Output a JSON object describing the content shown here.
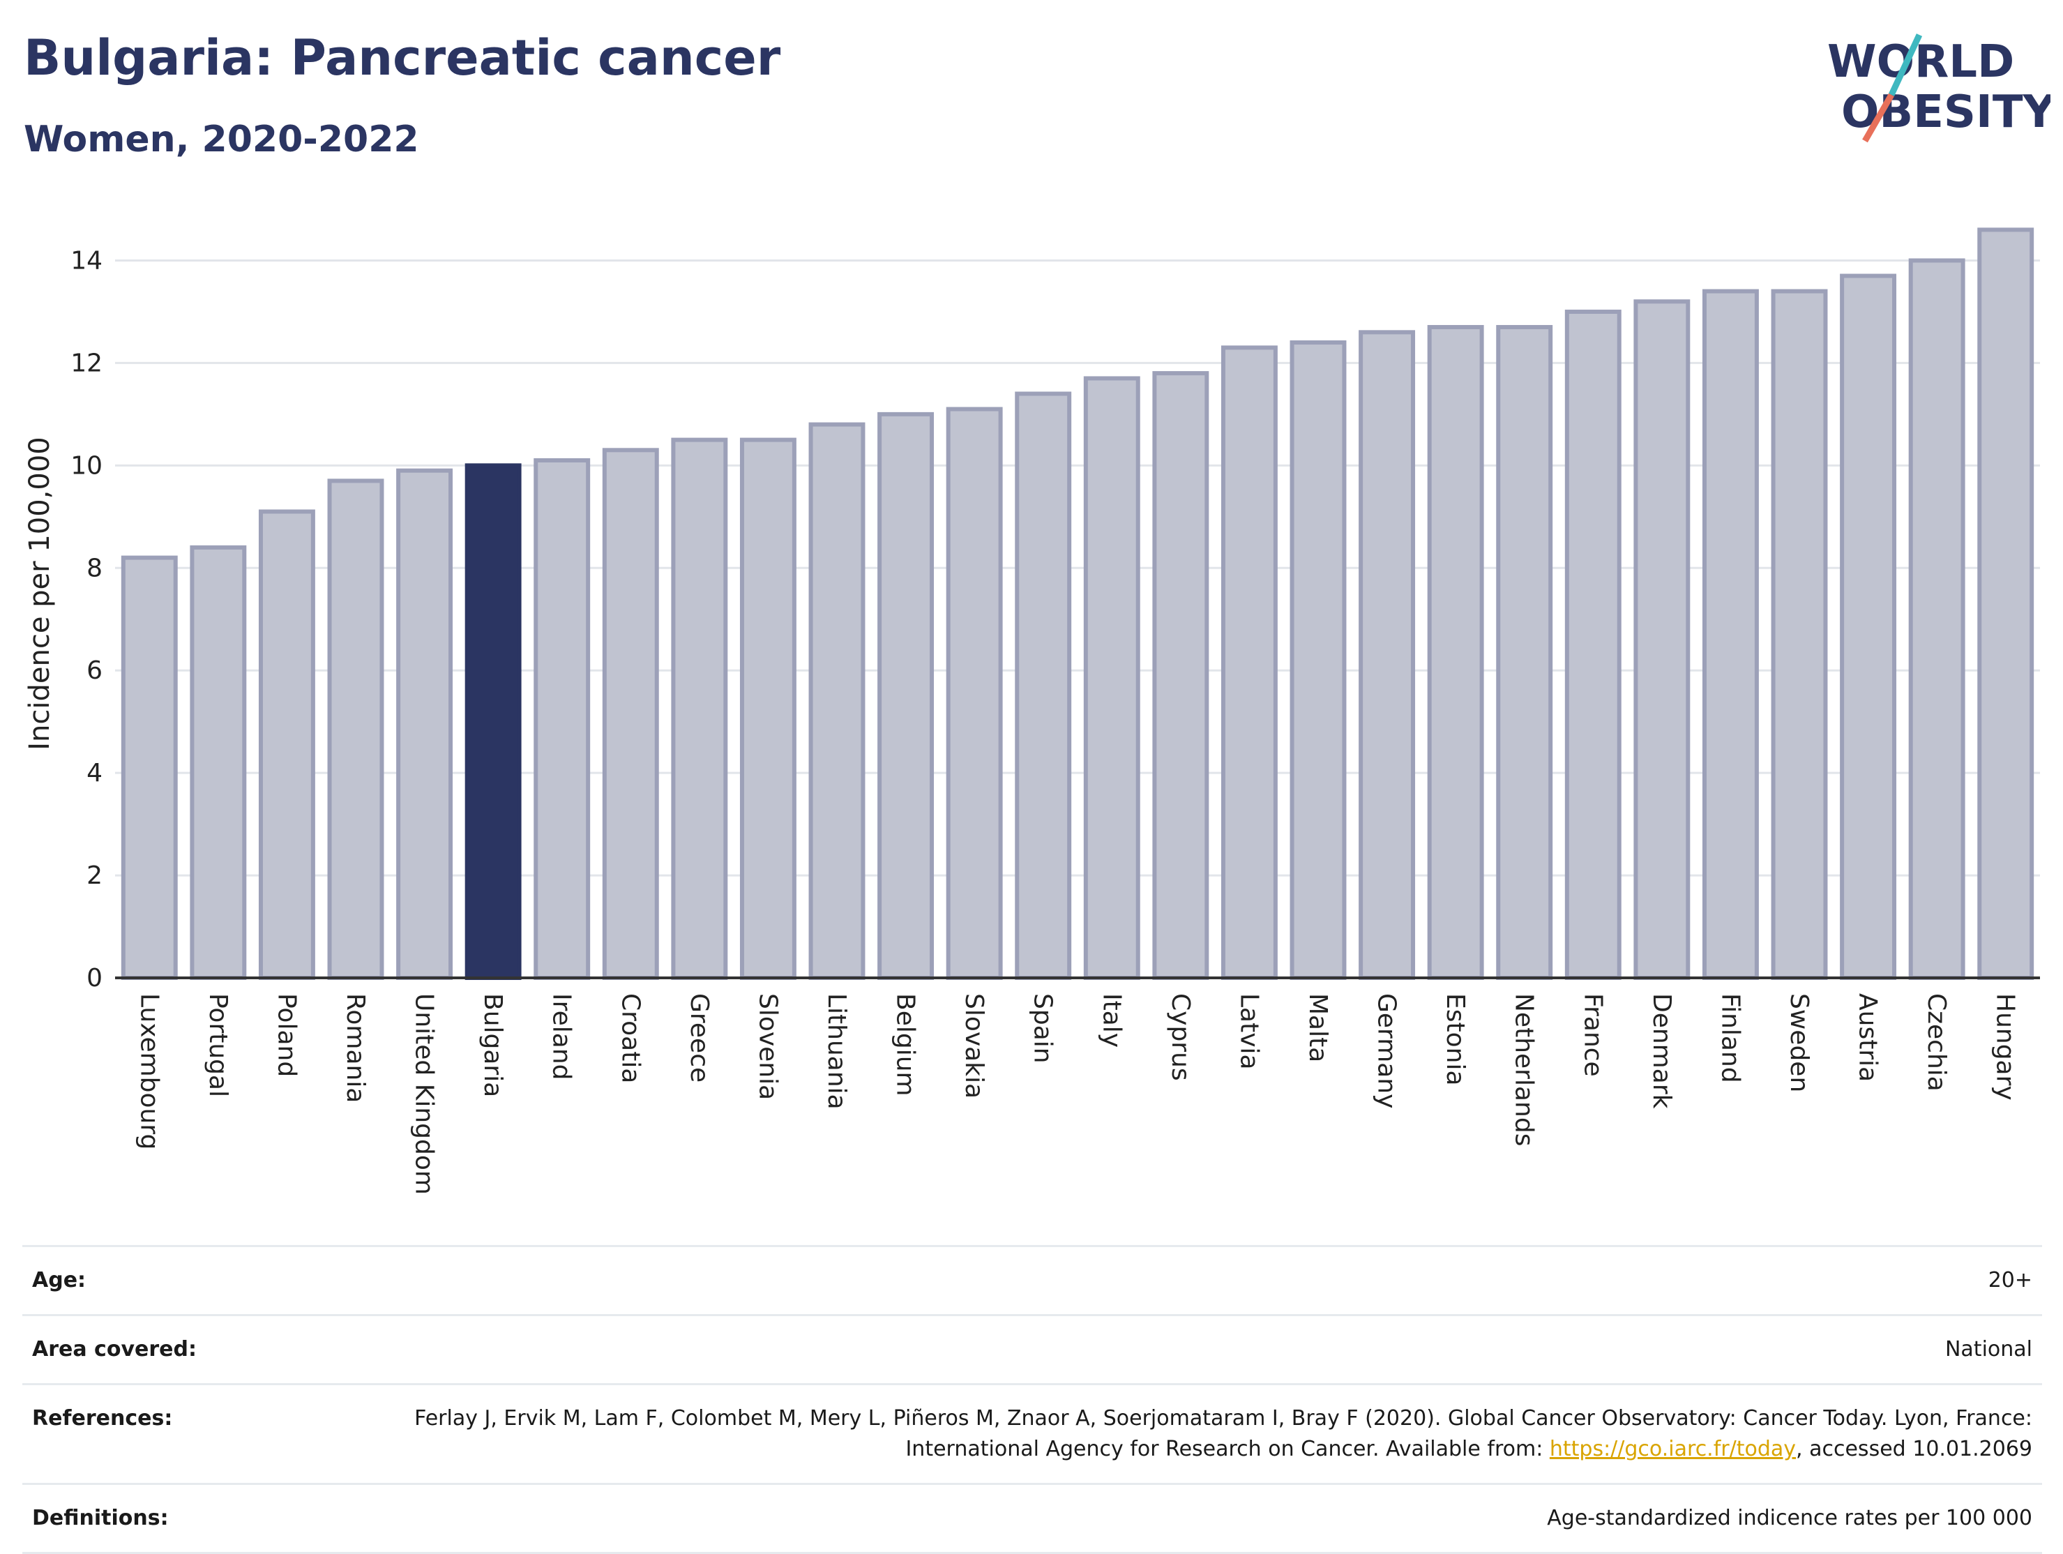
{
  "header": {
    "title": "Bulgaria: Pancreatic cancer",
    "subtitle": "Women, 2020-2022"
  },
  "logo": {
    "line1": "WORLD",
    "line2": "OBESITY",
    "brand_color": "#2b3562",
    "accent_teal": "#3fb8c0",
    "accent_coral": "#e8705a"
  },
  "chart_data": {
    "type": "bar",
    "title": "",
    "xlabel": "",
    "ylabel": "Incidence per 100,000",
    "ylim": [
      0,
      15
    ],
    "yticks": [
      0,
      2,
      4,
      6,
      8,
      10,
      12,
      14
    ],
    "grid": true,
    "highlight_category": "Bulgaria",
    "colors": {
      "bar": "#c0c3d0",
      "bar_edge": "#9ca0b8",
      "highlight": "#2b3562",
      "grid": "#e2e5ea",
      "axis": "#333333"
    },
    "categories": [
      "Luxembourg",
      "Portugal",
      "Poland",
      "Romania",
      "United Kingdom",
      "Bulgaria",
      "Ireland",
      "Croatia",
      "Greece",
      "Slovenia",
      "Lithuania",
      "Belgium",
      "Slovakia",
      "Spain",
      "Italy",
      "Cyprus",
      "Latvia",
      "Malta",
      "Germany",
      "Estonia",
      "Netherlands",
      "France",
      "Denmark",
      "Finland",
      "Sweden",
      "Austria",
      "Czechia",
      "Hungary"
    ],
    "values": [
      8.2,
      8.4,
      9.1,
      9.7,
      9.9,
      10.0,
      10.1,
      10.3,
      10.5,
      10.5,
      10.8,
      11.0,
      11.1,
      11.4,
      11.7,
      11.8,
      12.3,
      12.4,
      12.6,
      12.7,
      12.7,
      13.0,
      13.2,
      13.4,
      13.4,
      13.7,
      14.0,
      14.6
    ]
  },
  "meta": {
    "age_label": "Age:",
    "age_value": "20+",
    "area_label": "Area covered:",
    "area_value": "National",
    "references_label": "References:",
    "references_text": "Ferlay J, Ervik M, Lam F, Colombet M, Mery L, Piñeros M, Znaor A, Soerjomataram I, Bray F (2020). Global Cancer Observatory: Cancer Today. Lyon, France: International Agency for Research on Cancer. Available from: ",
    "references_link": "https://gco.iarc.fr/today",
    "references_suffix": ", accessed 10.01.2069",
    "definitions_label": "Definitions:",
    "definitions_value": "Age-standardized indicence rates per 100 000"
  }
}
